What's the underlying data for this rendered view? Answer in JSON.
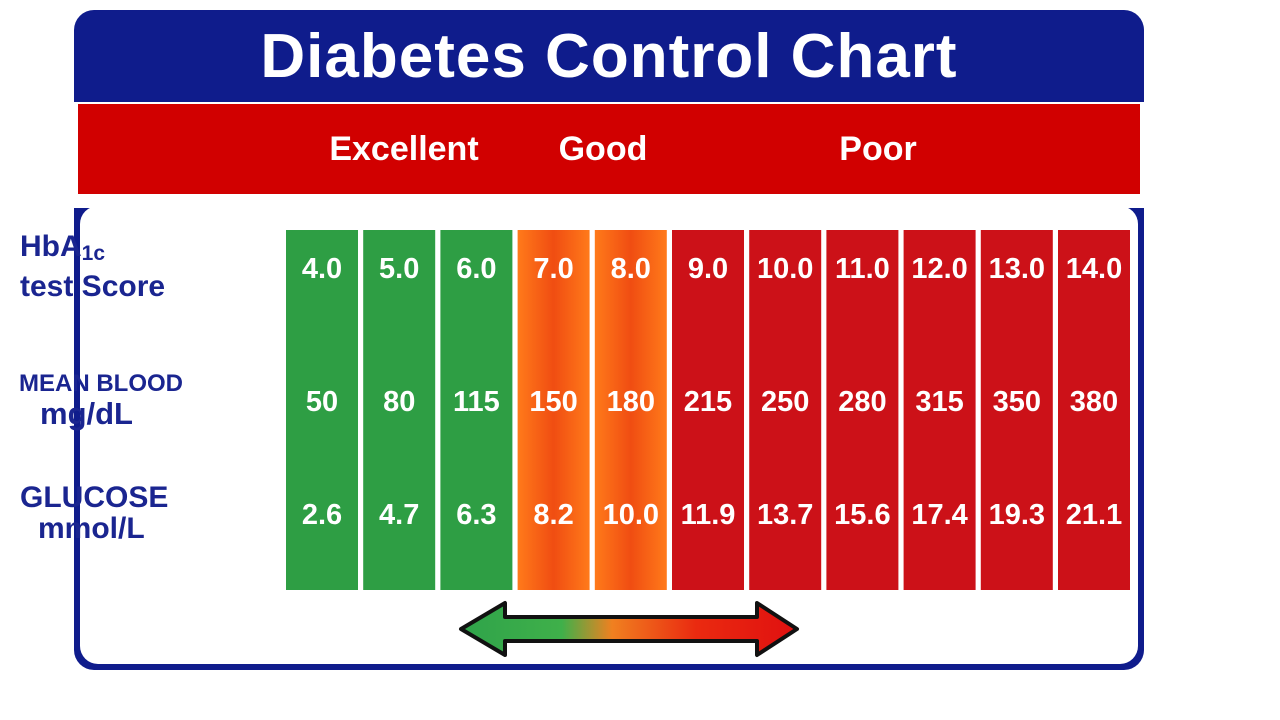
{
  "colors": {
    "navy": "#0f1c8c",
    "band_red": "#d10000",
    "excellent": "#2e9e44",
    "good": "#f0561a",
    "poor": "#cc1118",
    "label_text": "#1a2590"
  },
  "chart_data": {
    "type": "table",
    "title": "Diabetes Control Chart",
    "ratings": [
      "Excellent",
      "Good",
      "Poor"
    ],
    "row_labels": {
      "hba1c_main": "HbA",
      "hba1c_sub": "1c",
      "hba1c_line2": "test Score",
      "mean_line1": "MEAN BLOOD",
      "mean_line2": "mg/dL",
      "glucose_line1": "GLUCOSE",
      "glucose_line2": "mmol/L"
    },
    "columns": [
      {
        "category": "Excellent",
        "hba1c": "4.0",
        "mgdl": "50",
        "mmol": "2.6"
      },
      {
        "category": "Excellent",
        "hba1c": "5.0",
        "mgdl": "80",
        "mmol": "4.7"
      },
      {
        "category": "Excellent",
        "hba1c": "6.0",
        "mgdl": "115",
        "mmol": "6.3"
      },
      {
        "category": "Good",
        "hba1c": "7.0",
        "mgdl": "150",
        "mmol": "8.2"
      },
      {
        "category": "Good",
        "hba1c": "8.0",
        "mgdl": "180",
        "mmol": "10.0"
      },
      {
        "category": "Poor",
        "hba1c": "9.0",
        "mgdl": "215",
        "mmol": "11.9"
      },
      {
        "category": "Poor",
        "hba1c": "10.0",
        "mgdl": "250",
        "mmol": "13.7"
      },
      {
        "category": "Poor",
        "hba1c": "11.0",
        "mgdl": "280",
        "mmol": "15.6"
      },
      {
        "category": "Poor",
        "hba1c": "12.0",
        "mgdl": "315",
        "mmol": "17.4"
      },
      {
        "category": "Poor",
        "hba1c": "13.0",
        "mgdl": "350",
        "mmol": "19.3"
      },
      {
        "category": "Poor",
        "hba1c": "14.0",
        "mgdl": "380",
        "mmol": "21.1"
      }
    ]
  }
}
